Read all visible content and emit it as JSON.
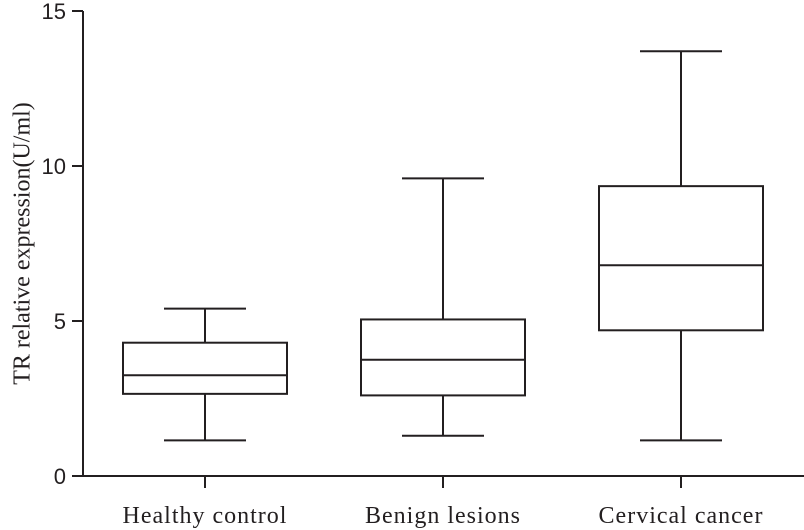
{
  "chart_data": {
    "type": "box",
    "title": "",
    "xlabel": "",
    "ylabel": "TR relative expression(U/ml)",
    "ylim": [
      0,
      15
    ],
    "yticks": [
      "0",
      "5",
      "10",
      "15"
    ],
    "categories": [
      "Healthy control",
      "Benign lesions",
      "Cervical cancer"
    ],
    "series": [
      {
        "category": "Healthy control",
        "min": 1.15,
        "q1": 2.65,
        "median": 3.25,
        "q3": 4.3,
        "max": 5.4
      },
      {
        "category": "Benign lesions",
        "min": 1.3,
        "q1": 2.6,
        "median": 3.75,
        "q3": 5.05,
        "max": 9.6
      },
      {
        "category": "Cervical cancer",
        "min": 1.15,
        "q1": 4.7,
        "median": 6.8,
        "q3": 9.35,
        "max": 13.7
      }
    ],
    "grid": false,
    "colors": {
      "ink": "#231f20",
      "box_fill": "#ffffff"
    }
  }
}
